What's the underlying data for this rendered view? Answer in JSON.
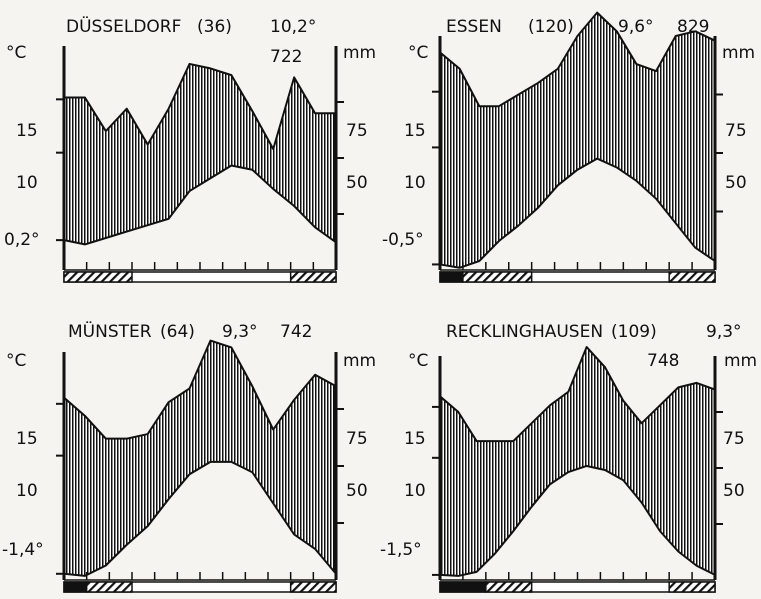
{
  "page": {
    "background": "#f6f4f1",
    "ink": "#111111",
    "frost_bar_colors": [
      "#111111",
      "#ffffff"
    ]
  },
  "units": {
    "temp_unit": "°C",
    "precip_unit": "mm"
  },
  "chart_data": [
    {
      "type": "area",
      "station": "DÜSSELDORF",
      "elevation": "(36)",
      "mean_temp": "10,2°",
      "annual_precip": "722",
      "min_temp_label": "0,2°",
      "left_ticks": [
        "15",
        "10"
      ],
      "right_ticks": [
        "75",
        "50"
      ],
      "months": 12,
      "precip_line": [
        77,
        77,
        62,
        72,
        56,
        72,
        92,
        90,
        87,
        71,
        54,
        86,
        70,
        70
      ],
      "temp_line": [
        1.8,
        1.4,
        2.0,
        2.6,
        3.2,
        3.8,
        6.4,
        7.6,
        8.8,
        8.4,
        6.6,
        5.0,
        3.0,
        1.6
      ],
      "temp_range": [
        -1,
        20
      ],
      "precip_range": [
        0,
        100
      ],
      "frost_bars": [
        {
          "months": [
            0,
            3
          ],
          "pattern": "hatched"
        },
        {
          "months": [
            10,
            12
          ],
          "pattern": "hatched"
        }
      ]
    },
    {
      "type": "area",
      "station": "ESSEN",
      "elevation": "(120)",
      "mean_temp": "9,6°",
      "annual_precip": "829",
      "min_temp_label": "-0,5°",
      "left_ticks": [
        "15",
        "10"
      ],
      "right_ticks": [
        "75",
        "50"
      ],
      "months": 12,
      "precip_line": [
        93,
        86,
        70,
        70,
        75,
        80,
        86,
        100,
        110,
        102,
        88,
        85,
        100,
        102,
        98
      ],
      "temp_line": [
        -0.5,
        -0.8,
        -0.2,
        1.6,
        3.0,
        4.6,
        6.6,
        8.0,
        9.0,
        8.2,
        7.0,
        5.4,
        3.2,
        1.0,
        -0.2
      ],
      "temp_range": [
        -1,
        20
      ],
      "precip_range": [
        0,
        100
      ],
      "frost_bars": [
        {
          "months": [
            0,
            1
          ],
          "pattern": "solid"
        },
        {
          "months": [
            1,
            4
          ],
          "pattern": "hatched"
        },
        {
          "months": [
            10,
            12
          ],
          "pattern": "hatched"
        }
      ]
    },
    {
      "type": "area",
      "station": "MÜNSTER",
      "elevation": "(64)",
      "mean_temp": "9,3°",
      "annual_precip": "742",
      "min_temp_label": "-1,4°",
      "left_ticks": [
        "15",
        "10"
      ],
      "right_ticks": [
        "75",
        "50"
      ],
      "months": 12,
      "precip_line": [
        80,
        72,
        62,
        62,
        64,
        78,
        84,
        105,
        102,
        85,
        66,
        79,
        90,
        85
      ],
      "temp_line": [
        -1.4,
        -1.6,
        -0.6,
        1.4,
        3.2,
        5.8,
        8.2,
        9.4,
        9.4,
        8.4,
        5.4,
        2.4,
        1.0,
        -1.4
      ],
      "temp_range": [
        -2,
        20
      ],
      "precip_range": [
        0,
        100
      ],
      "frost_bars": [
        {
          "months": [
            0,
            1
          ],
          "pattern": "solid"
        },
        {
          "months": [
            1,
            3
          ],
          "pattern": "hatched"
        },
        {
          "months": [
            10,
            12
          ],
          "pattern": "hatched"
        }
      ]
    },
    {
      "type": "area",
      "station": "RECKLINGHAUSEN",
      "elevation": "(109)",
      "mean_temp": "9,3°",
      "annual_precip": "748",
      "min_temp_label": "-1,5°",
      "left_ticks": [
        "15",
        "10"
      ],
      "right_ticks": [
        "75",
        "50"
      ],
      "months": 12,
      "precip_line": [
        82,
        75,
        62,
        62,
        62,
        70,
        78,
        84,
        104,
        95,
        80,
        70,
        78,
        86,
        88,
        85
      ],
      "temp_line": [
        -1.5,
        -1.6,
        -1.2,
        0.6,
        2.8,
        5.2,
        7.4,
        8.6,
        9.2,
        8.8,
        7.8,
        5.6,
        2.8,
        0.8,
        -0.6,
        -1.5
      ],
      "temp_range": [
        -2,
        20
      ],
      "precip_range": [
        0,
        100
      ],
      "frost_bars": [
        {
          "months": [
            0,
            2
          ],
          "pattern": "solid"
        },
        {
          "months": [
            2,
            4
          ],
          "pattern": "hatched"
        },
        {
          "months": [
            10,
            12
          ],
          "pattern": "hatched"
        }
      ]
    }
  ]
}
